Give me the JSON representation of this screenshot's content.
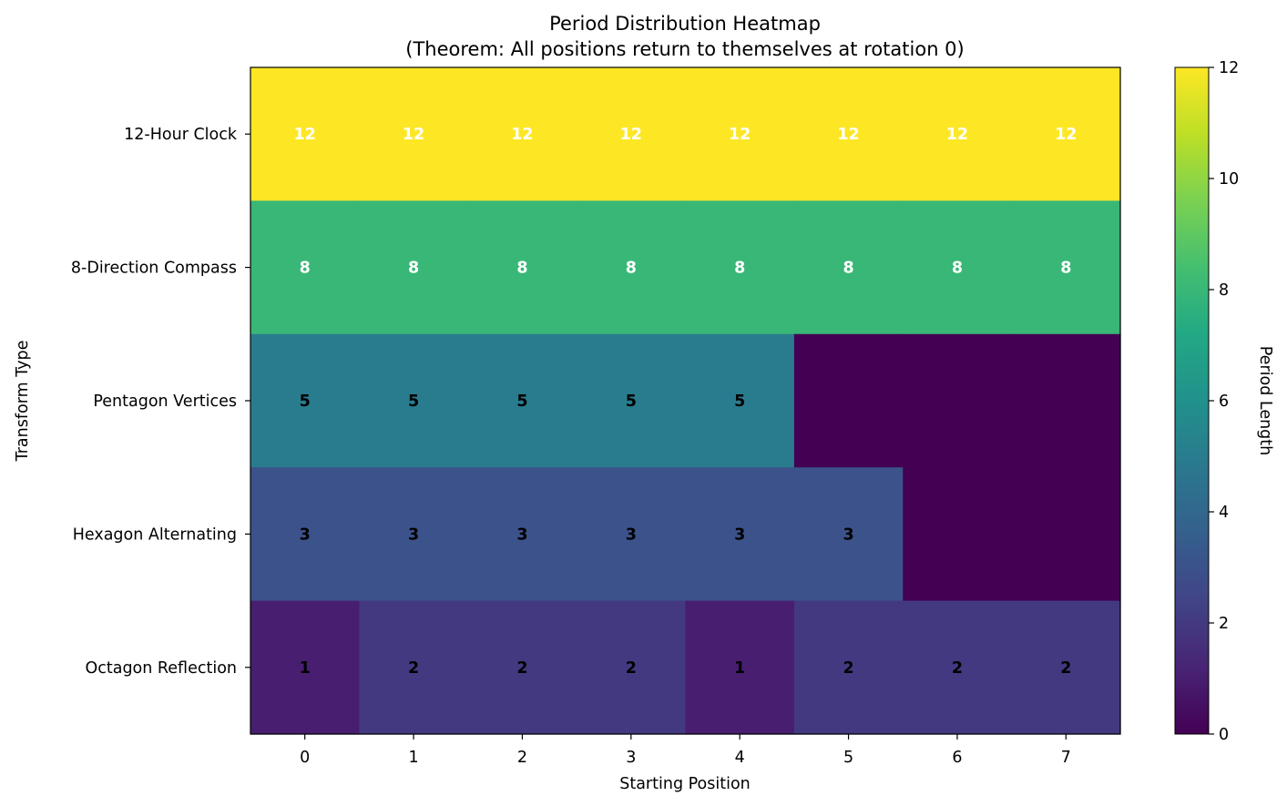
{
  "chart_data": {
    "type": "heatmap",
    "title": "Period Distribution Heatmap",
    "subtitle": "(Theorem: All positions return to themselves at rotation 0)",
    "xlabel": "Starting Position",
    "ylabel": "Transform Type",
    "x_categories": [
      "0",
      "1",
      "2",
      "3",
      "4",
      "5",
      "6",
      "7"
    ],
    "y_categories": [
      "12-Hour Clock",
      "8-Direction Compass",
      "Pentagon Vertices",
      "Hexagon Alternating",
      "Octagon Reflection"
    ],
    "values": [
      [
        12,
        12,
        12,
        12,
        12,
        12,
        12,
        12
      ],
      [
        8,
        8,
        8,
        8,
        8,
        8,
        8,
        8
      ],
      [
        5,
        5,
        5,
        5,
        5,
        0,
        0,
        0
      ],
      [
        3,
        3,
        3,
        3,
        3,
        3,
        0,
        0
      ],
      [
        1,
        2,
        2,
        2,
        1,
        2,
        2,
        2
      ]
    ],
    "cell_labels": [
      [
        "12",
        "12",
        "12",
        "12",
        "12",
        "12",
        "12",
        "12"
      ],
      [
        "8",
        "8",
        "8",
        "8",
        "8",
        "8",
        "8",
        "8"
      ],
      [
        "5",
        "5",
        "5",
        "5",
        "5",
        "",
        "",
        ""
      ],
      [
        "3",
        "3",
        "3",
        "3",
        "3",
        "3",
        "",
        ""
      ],
      [
        "1",
        "2",
        "2",
        "2",
        "1",
        "2",
        "2",
        "2"
      ]
    ],
    "label_threshold": 6,
    "colorscale": "viridis",
    "vmin": 0,
    "vmax": 12,
    "colorbar": {
      "label": "Period Length",
      "ticks": [
        "0",
        "2",
        "4",
        "6",
        "8",
        "10",
        "12"
      ]
    }
  }
}
